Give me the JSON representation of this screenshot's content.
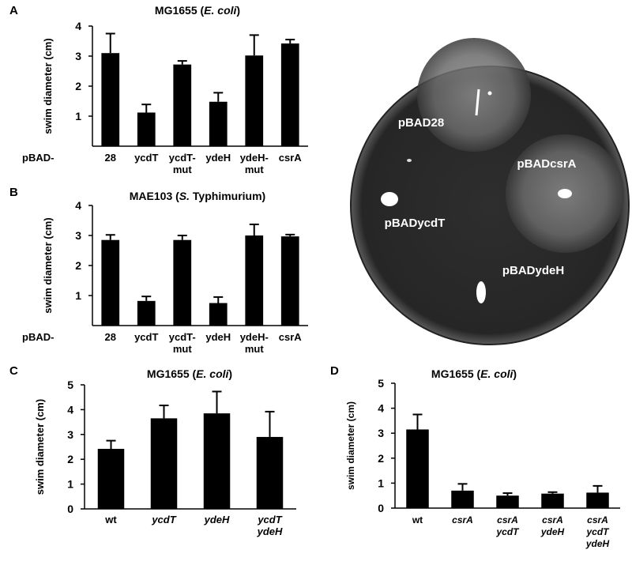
{
  "chart_data": [
    {
      "type": "bar",
      "label": "A",
      "title": [
        {
          "text": "MG1655 (",
          "italic": false
        },
        {
          "text": "E. coli",
          "italic": true
        },
        {
          "text": ")",
          "italic": false
        }
      ],
      "ylabel": "swim diameter (cm)",
      "prefix": "pBAD-",
      "categories": [
        [
          "28"
        ],
        [
          "ycdT"
        ],
        [
          "ycdT-",
          "mut"
        ],
        [
          "ydeH"
        ],
        [
          "ydeH-",
          "mut"
        ],
        [
          "csrA"
        ]
      ],
      "category_italic": [
        false,
        false,
        false,
        false,
        false,
        false
      ],
      "ylim": [
        0,
        4
      ],
      "yticks": [
        1,
        2,
        3,
        4
      ],
      "series": [
        {
          "color": "#000000",
          "values": [
            3.1,
            1.12,
            2.72,
            1.48,
            3.02,
            3.42
          ],
          "errors": [
            0.65,
            0.27,
            0.12,
            0.3,
            0.68,
            0.13
          ]
        }
      ]
    },
    {
      "type": "bar",
      "label": "B",
      "title": [
        {
          "text": "MAE103 (",
          "italic": false
        },
        {
          "text": "S.",
          "italic": true
        },
        {
          "text": " Typhimurium)",
          "italic": false
        }
      ],
      "ylabel": "swim diameter (cm)",
      "prefix": "pBAD-",
      "categories": [
        [
          "28"
        ],
        [
          "ycdT"
        ],
        [
          "ycdT-",
          "mut"
        ],
        [
          "ydeH"
        ],
        [
          "ydeH-",
          "mut"
        ],
        [
          "csrA"
        ]
      ],
      "category_italic": [
        false,
        false,
        false,
        false,
        false,
        false
      ],
      "ylim": [
        0,
        4
      ],
      "yticks": [
        1,
        2,
        3,
        4
      ],
      "series": [
        {
          "color": "#000000",
          "values": [
            2.85,
            0.82,
            2.85,
            0.75,
            3.0,
            2.97
          ],
          "errors": [
            0.17,
            0.15,
            0.15,
            0.2,
            0.37,
            0.06
          ]
        }
      ]
    },
    {
      "type": "bar",
      "label": "C",
      "title": [
        {
          "text": "MG1655 (",
          "italic": false
        },
        {
          "text": "E. coli",
          "italic": true
        },
        {
          "text": ")",
          "italic": false
        }
      ],
      "ylabel": "swim diameter (cm)",
      "categories": [
        [
          "wt"
        ],
        [
          "ycdT"
        ],
        [
          "ydeH"
        ],
        [
          "ycdT",
          "ydeH"
        ]
      ],
      "category_italic": [
        false,
        true,
        true,
        true
      ],
      "ylim": [
        0,
        5
      ],
      "yticks": [
        0,
        1,
        2,
        3,
        4,
        5
      ],
      "series": [
        {
          "color": "#000000",
          "values": [
            2.42,
            3.65,
            3.85,
            2.9
          ],
          "errors": [
            0.33,
            0.52,
            0.88,
            1.02
          ]
        }
      ]
    },
    {
      "type": "bar",
      "label": "D",
      "title": [
        {
          "text": "MG1655 (",
          "italic": false
        },
        {
          "text": "E. coli",
          "italic": true
        },
        {
          "text": ")",
          "italic": false
        }
      ],
      "ylabel": "swim diameter (cm)",
      "categories": [
        [
          "wt"
        ],
        [
          "csrA"
        ],
        [
          "csrA",
          "ycdT"
        ],
        [
          "csrA",
          "ydeH"
        ],
        [
          "csrA",
          "ycdT",
          "ydeH"
        ]
      ],
      "category_italic": [
        false,
        true,
        true,
        true,
        true
      ],
      "ylim": [
        0,
        5
      ],
      "yticks": [
        0,
        1,
        2,
        3,
        4,
        5
      ],
      "series": [
        {
          "color": "#000000",
          "values": [
            3.15,
            0.7,
            0.5,
            0.58,
            0.62
          ],
          "errors": [
            0.6,
            0.27,
            0.1,
            0.06,
            0.27
          ]
        }
      ]
    }
  ],
  "photo": {
    "labels": [
      "pBAD28",
      "pBADcsrA",
      "pBADycdT",
      "pBADydeH"
    ]
  }
}
